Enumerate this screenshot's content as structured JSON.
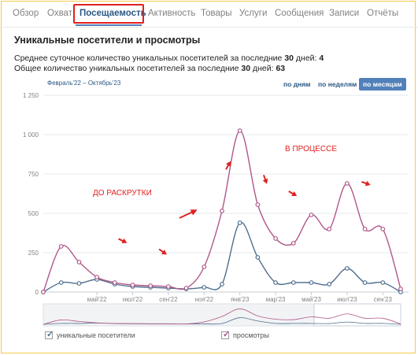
{
  "tabs": [
    {
      "label": "Обзор",
      "name": "tab-overview"
    },
    {
      "label": "Охват",
      "name": "tab-reach"
    },
    {
      "label": "Посещаемость",
      "name": "tab-attendance"
    },
    {
      "label": "Активность",
      "name": "tab-activity"
    },
    {
      "label": "Товары",
      "name": "tab-products"
    },
    {
      "label": "Услуги",
      "name": "tab-services"
    },
    {
      "label": "Сообщения",
      "name": "tab-messages"
    },
    {
      "label": "Записи",
      "name": "tab-posts"
    },
    {
      "label": "Отчёты",
      "name": "tab-reports"
    }
  ],
  "active_tab": "Посещаемость",
  "section_title": "Уникальные посетители и просмотры",
  "stats": {
    "daily_label": "Среднее суточное количество уникальных посетителей за последние ",
    "daily_days": "30",
    "daily_suffix": " дней: ",
    "daily_value": "4",
    "total_label": "Общее количество уникальных посетителей за последние ",
    "total_days": "30",
    "total_suffix": " дней: ",
    "total_value": "63"
  },
  "date_range": "Февраль'22 – Октябрь'23",
  "period_buttons": {
    "days": "по дням",
    "weeks": "по неделям",
    "months": "по месяцам"
  },
  "annotations": {
    "before": "ДО РАСКРУТКИ",
    "in_progress": "В ПРОЦЕССЕ"
  },
  "legend": {
    "visitors": "уникальные посетители",
    "views": "просмотры"
  },
  "colors": {
    "visitors": "#4f6f8f",
    "views": "#b0578a",
    "accent": "#5181b8",
    "annotation": "#e02020"
  },
  "chart_data": {
    "type": "line",
    "ylim": [
      0,
      1250
    ],
    "yticks": [
      "0",
      "250",
      "500",
      "750",
      "1 000",
      "1 250"
    ],
    "x_tick_labels": [
      "май'22",
      "июл'22",
      "сен'22",
      "ноя'22",
      "янв'23",
      "мар'23",
      "май'23",
      "июл'23",
      "сен'23"
    ],
    "x": [
      "фев'22",
      "мар'22",
      "апр'22",
      "май'22",
      "июн'22",
      "июл'22",
      "авг'22",
      "сен'22",
      "окт'22",
      "ноя'22",
      "дек'22",
      "янв'23",
      "фев'23",
      "мар'23",
      "апр'23",
      "май'23",
      "июн'23",
      "июл'23",
      "авг'23",
      "сен'23",
      "окт'23"
    ],
    "series": [
      {
        "name": "уникальные посетители",
        "values": [
          0,
          60,
          55,
          80,
          50,
          35,
          30,
          25,
          20,
          30,
          50,
          440,
          220,
          60,
          60,
          60,
          50,
          150,
          60,
          60,
          0
        ]
      },
      {
        "name": "просмотры",
        "values": [
          0,
          290,
          190,
          95,
          60,
          45,
          40,
          35,
          25,
          160,
          515,
          1025,
          555,
          340,
          310,
          490,
          400,
          690,
          400,
          400,
          20
        ]
      }
    ]
  }
}
